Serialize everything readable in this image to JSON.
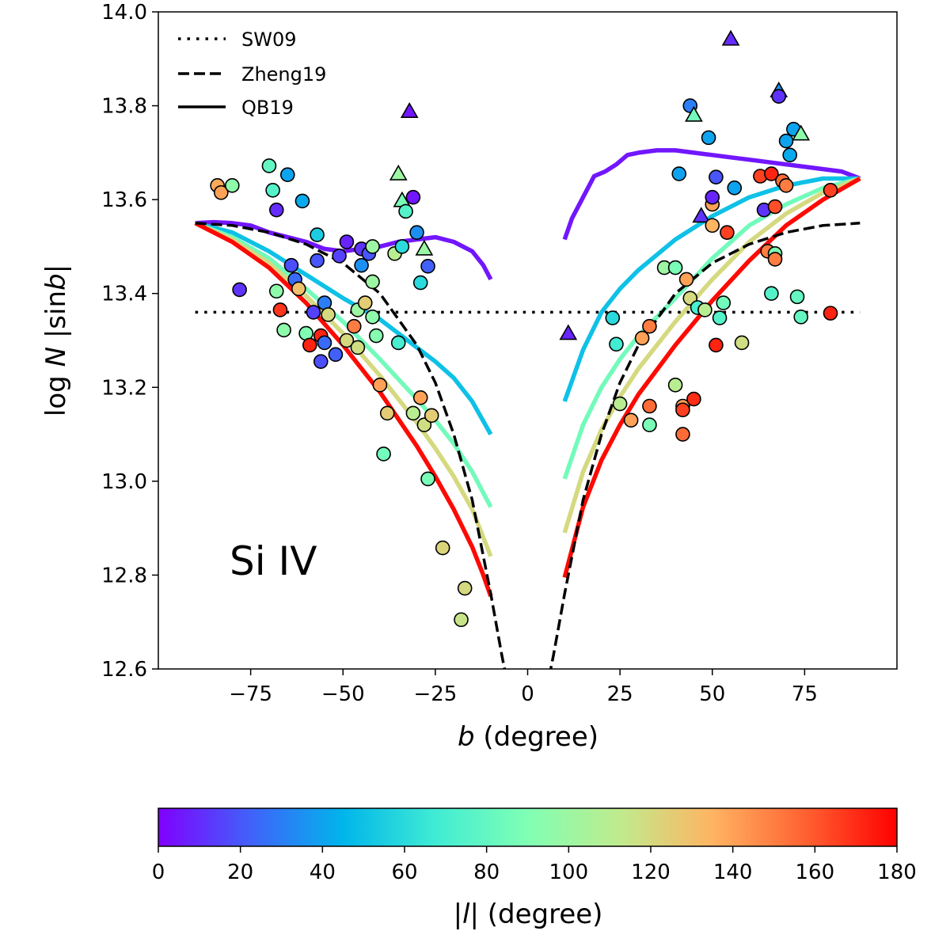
{
  "chart_data": {
    "type": "scatter",
    "annotation": "Si IV",
    "xlabel_italic": "b",
    "xlabel_rest": " (degree)",
    "ylabel_pre": "log ",
    "ylabel_italic_N": "N",
    "ylabel_mid": " |sin",
    "ylabel_italic_b": "b",
    "ylabel_post": "|",
    "xlim": [
      -100,
      100
    ],
    "ylim": [
      12.6,
      14.0
    ],
    "xticks": [
      -75,
      -50,
      -25,
      0,
      25,
      50,
      75
    ],
    "xtick_labels": [
      "−75",
      "−50",
      "−25",
      "0",
      "25",
      "50",
      "75"
    ],
    "yticks": [
      12.6,
      12.8,
      13.0,
      13.2,
      13.4,
      13.6,
      13.8,
      14.0
    ],
    "ytick_labels": [
      "12.6",
      "12.8",
      "13.0",
      "13.2",
      "13.4",
      "13.6",
      "13.8",
      "14.0"
    ],
    "legend_position": "top-left",
    "legend": [
      {
        "label": "SW09",
        "style": "dotted"
      },
      {
        "label": "Zheng19",
        "style": "dashed"
      },
      {
        "label": "QB19",
        "style": "solid"
      }
    ],
    "colorbar": {
      "range": [
        0,
        180
      ],
      "ticks": [
        0,
        20,
        40,
        60,
        80,
        100,
        120,
        140,
        160,
        180
      ],
      "tick_labels": [
        "0",
        "20",
        "40",
        "60",
        "80",
        "100",
        "120",
        "140",
        "160",
        "180"
      ],
      "label_pre": "|",
      "label_italic": "l",
      "label_post": "| (degree)"
    },
    "sw09": {
      "y": 13.36,
      "x": [
        -90,
        90
      ]
    },
    "zheng19": {
      "x": [
        -90,
        -80,
        -70,
        -60,
        -50,
        -40,
        -30,
        -25,
        -20,
        -15,
        -10,
        -7,
        -5,
        5,
        7,
        10,
        15,
        20,
        25,
        30,
        40,
        50,
        60,
        70,
        80,
        90
      ],
      "y": [
        13.55,
        13.545,
        13.53,
        13.505,
        13.465,
        13.4,
        13.29,
        13.21,
        13.1,
        12.96,
        12.76,
        12.63,
        12.55,
        12.55,
        12.63,
        12.76,
        12.96,
        13.1,
        13.21,
        13.29,
        13.4,
        13.465,
        13.505,
        13.53,
        13.545,
        13.55
      ]
    },
    "qb19": [
      {
        "l": 5,
        "left": {
          "x": [
            -90,
            -85,
            -80,
            -75,
            -70,
            -65,
            -60,
            -55,
            -50,
            -45,
            -40,
            -35,
            -30,
            -25,
            -20,
            -15,
            -12,
            -10
          ],
          "y": [
            13.55,
            13.552,
            13.55,
            13.545,
            13.53,
            13.52,
            13.51,
            13.495,
            13.49,
            13.495,
            13.5,
            13.51,
            13.515,
            13.52,
            13.51,
            13.49,
            13.46,
            13.43
          ]
        },
        "right": {
          "x": [
            10,
            12,
            15,
            18,
            21,
            24,
            27,
            30,
            35,
            40,
            45,
            50,
            55,
            60,
            65,
            70,
            75,
            80,
            85,
            90
          ],
          "y": [
            13.515,
            13.56,
            13.605,
            13.65,
            13.66,
            13.675,
            13.695,
            13.7,
            13.705,
            13.705,
            13.7,
            13.695,
            13.69,
            13.685,
            13.68,
            13.675,
            13.67,
            13.665,
            13.66,
            13.645
          ]
        }
      },
      {
        "l": 50,
        "left": {
          "x": [
            -90,
            -80,
            -70,
            -60,
            -50,
            -40,
            -30,
            -25,
            -20,
            -15,
            -10
          ],
          "y": [
            13.55,
            13.53,
            13.49,
            13.44,
            13.39,
            13.345,
            13.285,
            13.255,
            13.22,
            13.17,
            13.1
          ]
        },
        "right": {
          "x": [
            10,
            15,
            20,
            25,
            30,
            40,
            50,
            60,
            70,
            80,
            90
          ],
          "y": [
            13.17,
            13.28,
            13.36,
            13.41,
            13.45,
            13.515,
            13.565,
            13.605,
            13.63,
            13.645,
            13.645
          ]
        }
      },
      {
        "l": 85,
        "left": {
          "x": [
            -90,
            -80,
            -70,
            -60,
            -50,
            -40,
            -30,
            -25,
            -20,
            -15,
            -10
          ],
          "y": [
            13.55,
            13.52,
            13.475,
            13.41,
            13.34,
            13.26,
            13.175,
            13.13,
            13.08,
            13.02,
            12.945
          ]
        },
        "right": {
          "x": [
            10,
            15,
            20,
            25,
            30,
            40,
            50,
            60,
            70,
            80,
            90
          ],
          "y": [
            13.005,
            13.12,
            13.2,
            13.26,
            13.31,
            13.39,
            13.475,
            13.545,
            13.59,
            13.625,
            13.645
          ]
        }
      },
      {
        "l": 120,
        "left": {
          "x": [
            -90,
            -80,
            -70,
            -60,
            -50,
            -40,
            -30,
            -25,
            -20,
            -15,
            -10
          ],
          "y": [
            13.55,
            13.515,
            13.465,
            13.395,
            13.315,
            13.225,
            13.125,
            13.07,
            13.01,
            12.94,
            12.84
          ]
        },
        "right": {
          "x": [
            10,
            15,
            20,
            25,
            30,
            40,
            50,
            60,
            70,
            80,
            90
          ],
          "y": [
            12.89,
            13.02,
            13.11,
            13.18,
            13.24,
            13.34,
            13.43,
            13.51,
            13.57,
            13.615,
            13.645
          ]
        }
      },
      {
        "l": 178,
        "left": {
          "x": [
            -90,
            -80,
            -70,
            -60,
            -50,
            -40,
            -30,
            -25,
            -20,
            -15,
            -12,
            -10
          ],
          "y": [
            13.55,
            13.51,
            13.455,
            13.38,
            13.29,
            13.19,
            13.075,
            13.01,
            12.94,
            12.86,
            12.8,
            12.755
          ]
        },
        "right": {
          "x": [
            10,
            15,
            20,
            25,
            30,
            40,
            50,
            60,
            70,
            80,
            90
          ],
          "y": [
            12.795,
            12.945,
            13.045,
            13.12,
            13.185,
            13.29,
            13.385,
            13.47,
            13.545,
            13.6,
            13.645
          ]
        }
      }
    ],
    "points": [
      {
        "b": -84,
        "y": 13.63,
        "l": 138,
        "m": "o"
      },
      {
        "b": -83,
        "y": 13.615,
        "l": 140,
        "m": "o"
      },
      {
        "b": -80,
        "y": 13.63,
        "l": 95,
        "m": "o"
      },
      {
        "b": -78,
        "y": 13.408,
        "l": 12,
        "m": "o"
      },
      {
        "b": -70,
        "y": 13.672,
        "l": 80,
        "m": "o"
      },
      {
        "b": -69,
        "y": 13.62,
        "l": 75,
        "m": "o"
      },
      {
        "b": -68,
        "y": 13.578,
        "l": 10,
        "m": "o"
      },
      {
        "b": -68,
        "y": 13.405,
        "l": 95,
        "m": "o"
      },
      {
        "b": -67,
        "y": 13.365,
        "l": 168,
        "m": "o"
      },
      {
        "b": -66,
        "y": 13.322,
        "l": 95,
        "m": "o"
      },
      {
        "b": -65,
        "y": 13.653,
        "l": 40,
        "m": "o"
      },
      {
        "b": -64,
        "y": 13.46,
        "l": 18,
        "m": "o"
      },
      {
        "b": -63,
        "y": 13.43,
        "l": 25,
        "m": "o"
      },
      {
        "b": -62,
        "y": 13.41,
        "l": 130,
        "m": "o"
      },
      {
        "b": -61,
        "y": 13.597,
        "l": 42,
        "m": "o"
      },
      {
        "b": -60,
        "y": 13.315,
        "l": 90,
        "m": "o"
      },
      {
        "b": -59,
        "y": 13.29,
        "l": 172,
        "m": "o"
      },
      {
        "b": -58,
        "y": 13.36,
        "l": 15,
        "m": "o"
      },
      {
        "b": -57,
        "y": 13.525,
        "l": 55,
        "m": "o"
      },
      {
        "b": -57,
        "y": 13.47,
        "l": 20,
        "m": "o"
      },
      {
        "b": -56,
        "y": 13.255,
        "l": 18,
        "m": "o"
      },
      {
        "b": -56,
        "y": 13.31,
        "l": 172,
        "m": "o"
      },
      {
        "b": -55,
        "y": 13.38,
        "l": 30,
        "m": "o"
      },
      {
        "b": -55,
        "y": 13.295,
        "l": 25,
        "m": "o"
      },
      {
        "b": -54,
        "y": 13.355,
        "l": 120,
        "m": "o"
      },
      {
        "b": -52,
        "y": 13.27,
        "l": 22,
        "m": "o"
      },
      {
        "b": -51,
        "y": 13.48,
        "l": 15,
        "m": "o"
      },
      {
        "b": -49,
        "y": 13.51,
        "l": 8,
        "m": "o"
      },
      {
        "b": -49,
        "y": 13.3,
        "l": 120,
        "m": "o"
      },
      {
        "b": -47,
        "y": 13.33,
        "l": 150,
        "m": "o"
      },
      {
        "b": -46,
        "y": 13.285,
        "l": 118,
        "m": "o"
      },
      {
        "b": -46,
        "y": 13.365,
        "l": 100,
        "m": "o"
      },
      {
        "b": -45,
        "y": 13.46,
        "l": 35,
        "m": "o"
      },
      {
        "b": -45,
        "y": 13.495,
        "l": 12,
        "m": "o"
      },
      {
        "b": -44,
        "y": 13.38,
        "l": 125,
        "m": "o"
      },
      {
        "b": -43,
        "y": 13.485,
        "l": 20,
        "m": "o"
      },
      {
        "b": -42,
        "y": 13.5,
        "l": 100,
        "m": "o"
      },
      {
        "b": -42,
        "y": 13.425,
        "l": 100,
        "m": "o"
      },
      {
        "b": -42,
        "y": 13.35,
        "l": 95,
        "m": "o"
      },
      {
        "b": -41,
        "y": 13.31,
        "l": 92,
        "m": "o"
      },
      {
        "b": -40,
        "y": 13.205,
        "l": 140,
        "m": "o"
      },
      {
        "b": -39,
        "y": 13.058,
        "l": 85,
        "m": "o"
      },
      {
        "b": -38,
        "y": 13.145,
        "l": 125,
        "m": "o"
      },
      {
        "b": -36,
        "y": 13.485,
        "l": 110,
        "m": "o"
      },
      {
        "b": -35,
        "y": 13.655,
        "l": 100,
        "m": "t"
      },
      {
        "b": -35,
        "y": 13.295,
        "l": 70,
        "m": "o"
      },
      {
        "b": -34,
        "y": 13.5,
        "l": 60,
        "m": "o"
      },
      {
        "b": -34,
        "y": 13.598,
        "l": 88,
        "m": "t"
      },
      {
        "b": -33,
        "y": 13.575,
        "l": 75,
        "m": "o"
      },
      {
        "b": -32,
        "y": 13.788,
        "l": 5,
        "m": "t"
      },
      {
        "b": -31,
        "y": 13.605,
        "l": 5,
        "m": "o"
      },
      {
        "b": -31,
        "y": 13.145,
        "l": 110,
        "m": "o"
      },
      {
        "b": -30,
        "y": 13.53,
        "l": 35,
        "m": "o"
      },
      {
        "b": -29,
        "y": 13.423,
        "l": 60,
        "m": "o"
      },
      {
        "b": -29,
        "y": 13.178,
        "l": 140,
        "m": "o"
      },
      {
        "b": -28,
        "y": 13.495,
        "l": 100,
        "m": "t"
      },
      {
        "b": -28,
        "y": 13.12,
        "l": 118,
        "m": "o"
      },
      {
        "b": -27,
        "y": 13.458,
        "l": 22,
        "m": "o"
      },
      {
        "b": -27,
        "y": 13.005,
        "l": 88,
        "m": "o"
      },
      {
        "b": -26,
        "y": 13.14,
        "l": 125,
        "m": "o"
      },
      {
        "b": -23,
        "y": 12.858,
        "l": 122,
        "m": "o"
      },
      {
        "b": -18,
        "y": 12.705,
        "l": 115,
        "m": "o"
      },
      {
        "b": -17,
        "y": 12.772,
        "l": 120,
        "m": "o"
      },
      {
        "b": 11,
        "y": 13.315,
        "l": 8,
        "m": "t"
      },
      {
        "b": 23,
        "y": 13.348,
        "l": 60,
        "m": "o"
      },
      {
        "b": 24,
        "y": 13.292,
        "l": 68,
        "m": "o"
      },
      {
        "b": 25,
        "y": 13.165,
        "l": 110,
        "m": "o"
      },
      {
        "b": 28,
        "y": 13.13,
        "l": 140,
        "m": "o"
      },
      {
        "b": 31,
        "y": 13.305,
        "l": 140,
        "m": "o"
      },
      {
        "b": 33,
        "y": 13.33,
        "l": 150,
        "m": "o"
      },
      {
        "b": 33,
        "y": 13.16,
        "l": 155,
        "m": "o"
      },
      {
        "b": 33,
        "y": 13.12,
        "l": 88,
        "m": "o"
      },
      {
        "b": 37,
        "y": 13.455,
        "l": 100,
        "m": "o"
      },
      {
        "b": 40,
        "y": 13.455,
        "l": 88,
        "m": "o"
      },
      {
        "b": 40,
        "y": 13.205,
        "l": 110,
        "m": "o"
      },
      {
        "b": 41,
        "y": 13.655,
        "l": 40,
        "m": "o"
      },
      {
        "b": 42,
        "y": 13.16,
        "l": 140,
        "m": "o"
      },
      {
        "b": 42,
        "y": 13.152,
        "l": 165,
        "m": "o"
      },
      {
        "b": 42,
        "y": 13.1,
        "l": 155,
        "m": "o"
      },
      {
        "b": 43,
        "y": 13.43,
        "l": 140,
        "m": "o"
      },
      {
        "b": 44,
        "y": 13.8,
        "l": 30,
        "m": "o"
      },
      {
        "b": 44,
        "y": 13.39,
        "l": 120,
        "m": "o"
      },
      {
        "b": 45,
        "y": 13.78,
        "l": 85,
        "m": "t"
      },
      {
        "b": 45,
        "y": 13.175,
        "l": 170,
        "m": "o"
      },
      {
        "b": 46,
        "y": 13.37,
        "l": 70,
        "m": "o"
      },
      {
        "b": 47,
        "y": 13.565,
        "l": 12,
        "m": "t"
      },
      {
        "b": 48,
        "y": 13.365,
        "l": 110,
        "m": "o"
      },
      {
        "b": 49,
        "y": 13.732,
        "l": 40,
        "m": "o"
      },
      {
        "b": 50,
        "y": 13.59,
        "l": 140,
        "m": "o"
      },
      {
        "b": 50,
        "y": 13.545,
        "l": 135,
        "m": "o"
      },
      {
        "b": 50,
        "y": 13.605,
        "l": 8,
        "m": "o"
      },
      {
        "b": 51,
        "y": 13.648,
        "l": 20,
        "m": "o"
      },
      {
        "b": 51,
        "y": 13.29,
        "l": 172,
        "m": "o"
      },
      {
        "b": 52,
        "y": 13.348,
        "l": 75,
        "m": "o"
      },
      {
        "b": 53,
        "y": 13.38,
        "l": 85,
        "m": "o"
      },
      {
        "b": 54,
        "y": 13.53,
        "l": 165,
        "m": "o"
      },
      {
        "b": 55,
        "y": 13.942,
        "l": 10,
        "m": "t"
      },
      {
        "b": 56,
        "y": 13.625,
        "l": 40,
        "m": "o"
      },
      {
        "b": 58,
        "y": 13.295,
        "l": 118,
        "m": "o"
      },
      {
        "b": 63,
        "y": 13.65,
        "l": 165,
        "m": "o"
      },
      {
        "b": 64,
        "y": 13.578,
        "l": 12,
        "m": "o"
      },
      {
        "b": 65,
        "y": 13.49,
        "l": 150,
        "m": "o"
      },
      {
        "b": 66,
        "y": 13.655,
        "l": 172,
        "m": "o"
      },
      {
        "b": 66,
        "y": 13.4,
        "l": 75,
        "m": "o"
      },
      {
        "b": 67,
        "y": 13.585,
        "l": 162,
        "m": "o"
      },
      {
        "b": 67,
        "y": 13.485,
        "l": 90,
        "m": "o"
      },
      {
        "b": 67,
        "y": 13.473,
        "l": 150,
        "m": "o"
      },
      {
        "b": 68,
        "y": 13.832,
        "l": 35,
        "m": "t"
      },
      {
        "b": 68,
        "y": 13.82,
        "l": 12,
        "m": "o"
      },
      {
        "b": 69,
        "y": 13.64,
        "l": 155,
        "m": "o"
      },
      {
        "b": 70,
        "y": 13.725,
        "l": 40,
        "m": "o"
      },
      {
        "b": 70,
        "y": 13.63,
        "l": 150,
        "m": "o"
      },
      {
        "b": 71,
        "y": 13.695,
        "l": 42,
        "m": "o"
      },
      {
        "b": 72,
        "y": 13.75,
        "l": 40,
        "m": "o"
      },
      {
        "b": 73,
        "y": 13.393,
        "l": 80,
        "m": "o"
      },
      {
        "b": 74,
        "y": 13.74,
        "l": 95,
        "m": "t"
      },
      {
        "b": 74,
        "y": 13.35,
        "l": 80,
        "m": "o"
      },
      {
        "b": 82,
        "y": 13.358,
        "l": 172,
        "m": "o"
      },
      {
        "b": 82,
        "y": 13.62,
        "l": 165,
        "m": "o"
      }
    ]
  }
}
